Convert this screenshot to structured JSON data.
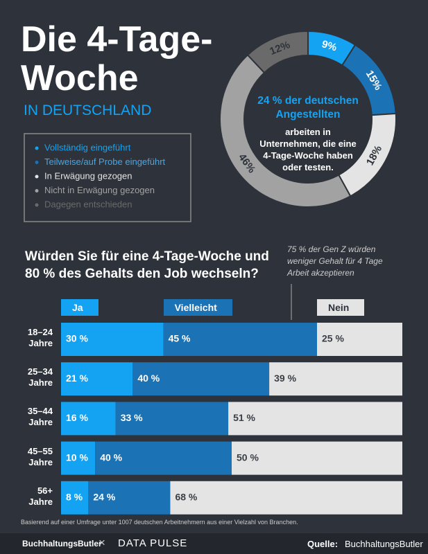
{
  "header": {
    "title_lines": [
      "Die 4-Tage-",
      "Woche"
    ],
    "subtitle": "IN DEUTSCHLAND"
  },
  "chart_data": [
    {
      "type": "pie",
      "categories": [
        "Vollständig eingeführt",
        "Teilweise/auf Probe eingeführt",
        "In Erwägung gezogen",
        "Nicht in Erwägung gezogen",
        "Dagegen entschieden"
      ],
      "values": [
        9,
        15,
        18,
        46,
        12
      ],
      "value_labels": [
        "9%",
        "15%",
        "18%",
        "46%",
        "12%"
      ],
      "colors": [
        "#14a3f3",
        "#1b72b5",
        "#e4e4e4",
        "#a2a2a2",
        "#6a6a6a"
      ],
      "center_text": {
        "highlight": "24 % der deutschen Angestellten",
        "text": "arbeiten in Unternehmen, die eine 4-Tage-Woche haben oder testen."
      }
    },
    {
      "type": "bar",
      "title": "Würden Sie für eine 4-Tage-Woche und 80 % des Gehalts den Job wechseln?",
      "annotation": "75 % der Gen Z würden weniger Gehalt für 4 Tage Arbeit akzeptieren",
      "categories": [
        "18–24 Jahre",
        "25–34 Jahre",
        "35–44 Jahre",
        "45–55 Jahre",
        "56+ Jahre"
      ],
      "xlim": [
        0,
        100
      ],
      "series": [
        {
          "name": "Ja",
          "color": "#14a3f3",
          "values": [
            30,
            21,
            16,
            10,
            8
          ],
          "value_labels": [
            "30 %",
            "21 %",
            "16 %",
            "10 %",
            "8 %"
          ]
        },
        {
          "name": "Vielleicht",
          "color": "#1b72b5",
          "values": [
            45,
            40,
            33,
            40,
            24
          ],
          "value_labels": [
            "45 %",
            "40 %",
            "33 %",
            "40 %",
            "24 %"
          ]
        },
        {
          "name": "Nein",
          "color": "#e4e4e4",
          "values": [
            25,
            39,
            51,
            50,
            68
          ],
          "value_labels": [
            "25 %",
            "39 %",
            "51 %",
            "50 %",
            "68 %"
          ]
        }
      ]
    }
  ],
  "footnote": "Basierend auf einer Umfrage unter 1007 deutschen Arbeitnehmern aus einer Vielzahl von Branchen.",
  "footer": {
    "logo_left": "BuchhaltungsButler",
    "separator": "×",
    "logo_right": "DATA PULSE",
    "source_label": "Quelle:",
    "source": "BuchhaltungsButler"
  }
}
